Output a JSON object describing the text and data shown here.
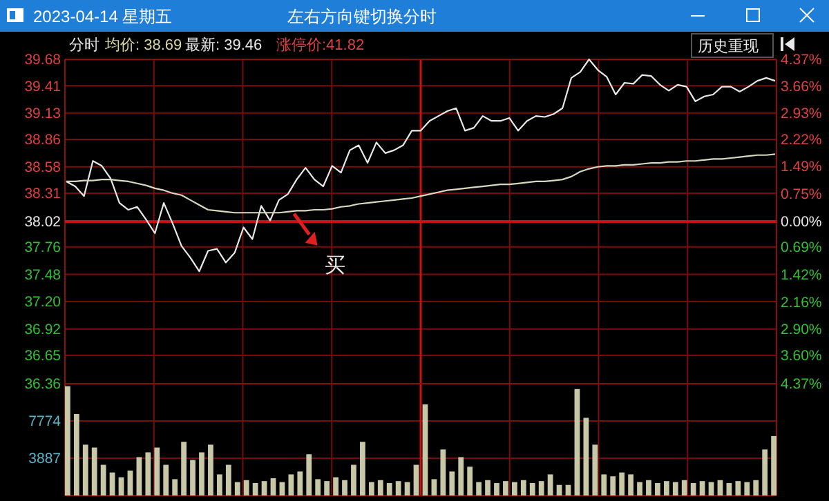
{
  "chart_data": [
    {
      "type": "line",
      "title": "2023-04-14 星期五",
      "subtitle": "左右方向键切换分时",
      "annotations": [
        "分时",
        "均价: 38.69",
        "最新: 39.46",
        "涨停价:41.82",
        "历史重现",
        {
          "text": "买",
          "y": 38.1
        }
      ],
      "categories": [
        null,
        null,
        null,
        null,
        null,
        null,
        null,
        null,
        null,
        null,
        null,
        null,
        null,
        null,
        null,
        null,
        null,
        null,
        null,
        null,
        null,
        null,
        null,
        null,
        null,
        null,
        null,
        null,
        null,
        null,
        null,
        null,
        null,
        null,
        null,
        null,
        null,
        null,
        null,
        null,
        null,
        null,
        null,
        null,
        null,
        null,
        null,
        null,
        null,
        null,
        null,
        null,
        null,
        null,
        null,
        null,
        null,
        null,
        null,
        null,
        null,
        null,
        null,
        null,
        null,
        null,
        null,
        null,
        null,
        null,
        null,
        null,
        null,
        null,
        null,
        null,
        null,
        null,
        null,
        null,
        null
      ],
      "series": [
        {
          "color": "#e8e8e8",
          "values": [
            38.43,
            38.38,
            38.28,
            38.64,
            38.59,
            38.46,
            38.21,
            38.14,
            38.17,
            38.04,
            37.9,
            38.21,
            38.0,
            37.77,
            37.65,
            37.51,
            37.72,
            37.74,
            37.6,
            37.7,
            37.96,
            37.84,
            38.18,
            38.03,
            38.24,
            38.3,
            38.45,
            38.57,
            38.45,
            38.38,
            38.59,
            38.52,
            38.75,
            38.8,
            38.62,
            38.83,
            38.72,
            38.75,
            38.8,
            38.95,
            38.95,
            39.05,
            39.1,
            39.15,
            39.18,
            38.95,
            38.98,
            39.1,
            39.05,
            39.05,
            39.08,
            38.95,
            39.05,
            39.1,
            39.09,
            39.12,
            39.18,
            39.49,
            39.55,
            39.68,
            39.57,
            39.5,
            39.32,
            39.44,
            39.43,
            39.52,
            39.51,
            39.42,
            39.36,
            39.42,
            39.4,
            39.25,
            39.3,
            39.32,
            39.4,
            39.4,
            39.35,
            39.4,
            39.46,
            39.49,
            39.46
          ]
        },
        {
          "color": "#d8d8c0",
          "values": [
            38.43,
            38.43,
            38.44,
            38.44,
            38.45,
            38.45,
            38.44,
            38.43,
            38.41,
            38.39,
            38.36,
            38.34,
            38.31,
            38.29,
            38.24,
            38.19,
            38.14,
            38.13,
            38.12,
            38.11,
            38.11,
            38.11,
            38.11,
            38.11,
            38.11,
            38.12,
            38.13,
            38.13,
            38.14,
            38.14,
            38.15,
            38.17,
            38.18,
            38.2,
            38.21,
            38.22,
            38.23,
            38.24,
            38.25,
            38.26,
            38.28,
            38.3,
            38.32,
            38.34,
            38.35,
            38.36,
            38.37,
            38.38,
            38.39,
            38.4,
            38.4,
            38.41,
            38.42,
            38.43,
            38.43,
            38.44,
            38.45,
            38.48,
            38.53,
            38.56,
            38.58,
            38.59,
            38.59,
            38.6,
            38.6,
            38.61,
            38.62,
            38.62,
            38.63,
            38.63,
            38.64,
            38.64,
            38.65,
            38.66,
            38.66,
            38.67,
            38.68,
            38.69,
            38.7,
            38.7,
            38.71
          ]
        }
      ],
      "ylim": [
        36.36,
        39.68
      ],
      "yticks": [
        36.36,
        36.65,
        36.92,
        {
          "value": 37.2,
          "label": "37.20"
        },
        37.48,
        37.76,
        38.02,
        38.31,
        38.58,
        38.86,
        39.13,
        39.41,
        39.68
      ],
      "y2lim": [
        -4.37,
        4.37
      ],
      "y2ticks": [
        {
          "value": -4.37,
          "label": "4.37%"
        },
        {
          "value": -3.6,
          "label": "3.60%"
        },
        {
          "value": -2.9,
          "label": "2.90%"
        },
        {
          "value": -2.16,
          "label": "2.16%"
        },
        {
          "value": -1.42,
          "label": "1.42%"
        },
        {
          "value": -0.69,
          "label": "0.69%"
        },
        {
          "value": 0,
          "label": "0.00%"
        },
        {
          "value": 0.75,
          "label": "0.75%"
        },
        {
          "value": 1.49,
          "label": "1.49%"
        },
        {
          "value": 2.22,
          "label": "2.22%"
        },
        {
          "value": 2.93,
          "label": "2.93%"
        },
        {
          "value": 3.66,
          "label": "3.66%"
        },
        {
          "value": 4.37,
          "label": "4.37%"
        }
      ],
      "grid": true,
      "ref_lines": [
        {
          "axis": "y",
          "value": 38.02,
          "color": "#d01010"
        }
      ]
    },
    {
      "type": "bar",
      "color": "#c8c8a8",
      "categories": [
        null,
        null,
        null,
        null,
        null,
        null,
        null,
        null,
        null,
        null,
        null,
        null,
        null,
        null,
        null,
        null,
        null,
        null,
        null,
        null,
        null,
        null,
        null,
        null,
        null,
        null,
        null,
        null,
        null,
        null,
        null,
        null,
        null,
        null,
        null,
        null,
        null,
        null,
        null,
        null,
        null,
        null,
        null,
        null,
        null,
        null,
        null,
        null,
        null,
        null,
        null,
        null,
        null,
        null,
        null,
        null,
        null,
        null,
        null,
        null,
        null,
        null,
        null,
        null,
        null,
        null,
        null,
        null,
        null,
        null,
        null,
        null,
        null,
        null,
        null,
        null,
        null,
        null,
        null,
        null
      ],
      "values": [
        11400,
        8500,
        5300,
        5000,
        3200,
        2400,
        1900,
        2600,
        4000,
        4500,
        5000,
        3200,
        1700,
        5600,
        3700,
        4500,
        5300,
        2200,
        3200,
        1400,
        1600,
        1300,
        1500,
        1800,
        1400,
        2200,
        2500,
        4300,
        1700,
        1500,
        1900,
        1600,
        3200,
        5600,
        1400,
        1600,
        1300,
        1500,
        1400,
        3200,
        9500,
        1700,
        4800,
        2500,
        4000,
        3000,
        1400,
        1600,
        1300,
        1500,
        1400,
        1600,
        1300,
        1500,
        2200,
        1100,
        1100,
        11100,
        8100,
        5300,
        2200,
        2000,
        2400,
        2200,
        1400,
        1600,
        1300,
        1500,
        1400,
        1600,
        1300,
        1500,
        1400,
        1600,
        1300,
        1500,
        1400,
        1600,
        4800,
        6200
      ],
      "ylim": [
        0,
        11661
      ],
      "yticks": [
        3887,
        7774
      ],
      "grid": true
    }
  ]
}
